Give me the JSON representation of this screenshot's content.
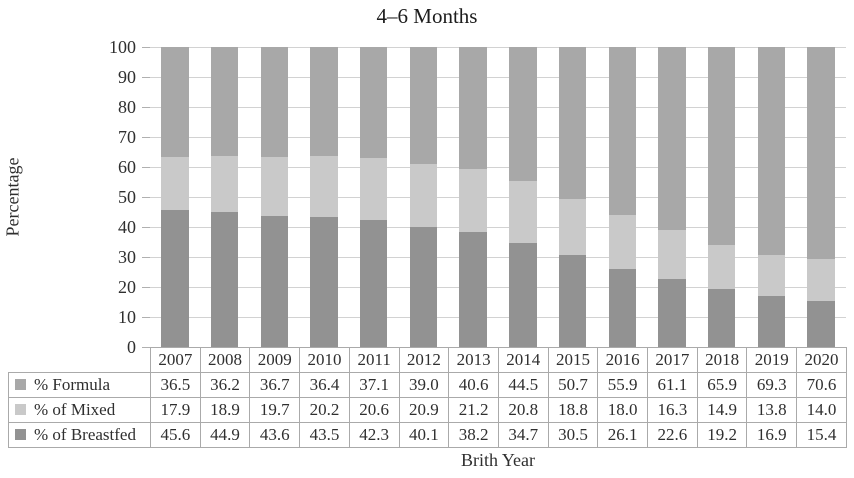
{
  "title": "4–6 Months",
  "axes": {
    "y_label": "Percentage",
    "x_label": "Brith Year",
    "y_ticks": [
      0,
      10,
      20,
      30,
      40,
      50,
      60,
      70,
      80,
      90,
      100
    ]
  },
  "chart_data": {
    "type": "bar",
    "subtype": "stacked-100-percent",
    "title": "4–6 Months",
    "xlabel": "Brith Year",
    "ylabel": "Percentage",
    "ylim": [
      0,
      100
    ],
    "grid": true,
    "legend_position": "table-left",
    "categories": [
      "2007",
      "2008",
      "2009",
      "2010",
      "2011",
      "2012",
      "2013",
      "2014",
      "2015",
      "2016",
      "2017",
      "2018",
      "2019",
      "2020"
    ],
    "series": [
      {
        "name": "% Formula",
        "color": "#a8a8a8",
        "stack_position": "top",
        "values": [
          36.5,
          36.2,
          36.7,
          36.4,
          37.1,
          39.0,
          40.6,
          44.5,
          50.7,
          55.9,
          61.1,
          65.9,
          69.3,
          70.6
        ]
      },
      {
        "name": "% of Mixed",
        "color": "#c9c9c9",
        "stack_position": "middle",
        "values": [
          17.9,
          18.9,
          19.7,
          20.2,
          20.6,
          20.9,
          21.2,
          20.8,
          18.8,
          18.0,
          16.3,
          14.9,
          13.8,
          14.0
        ]
      },
      {
        "name": "% of Breastfed",
        "color": "#929292",
        "stack_position": "bottom",
        "values": [
          45.6,
          44.9,
          43.6,
          43.5,
          42.3,
          40.1,
          38.2,
          34.7,
          30.5,
          26.1,
          22.6,
          19.2,
          16.9,
          15.4
        ]
      }
    ]
  },
  "colors": {
    "gridline": "#d2d2d2",
    "tick": "#b0b0b0",
    "table_border": "#aaaaaa",
    "text": "#2f2f2f"
  }
}
